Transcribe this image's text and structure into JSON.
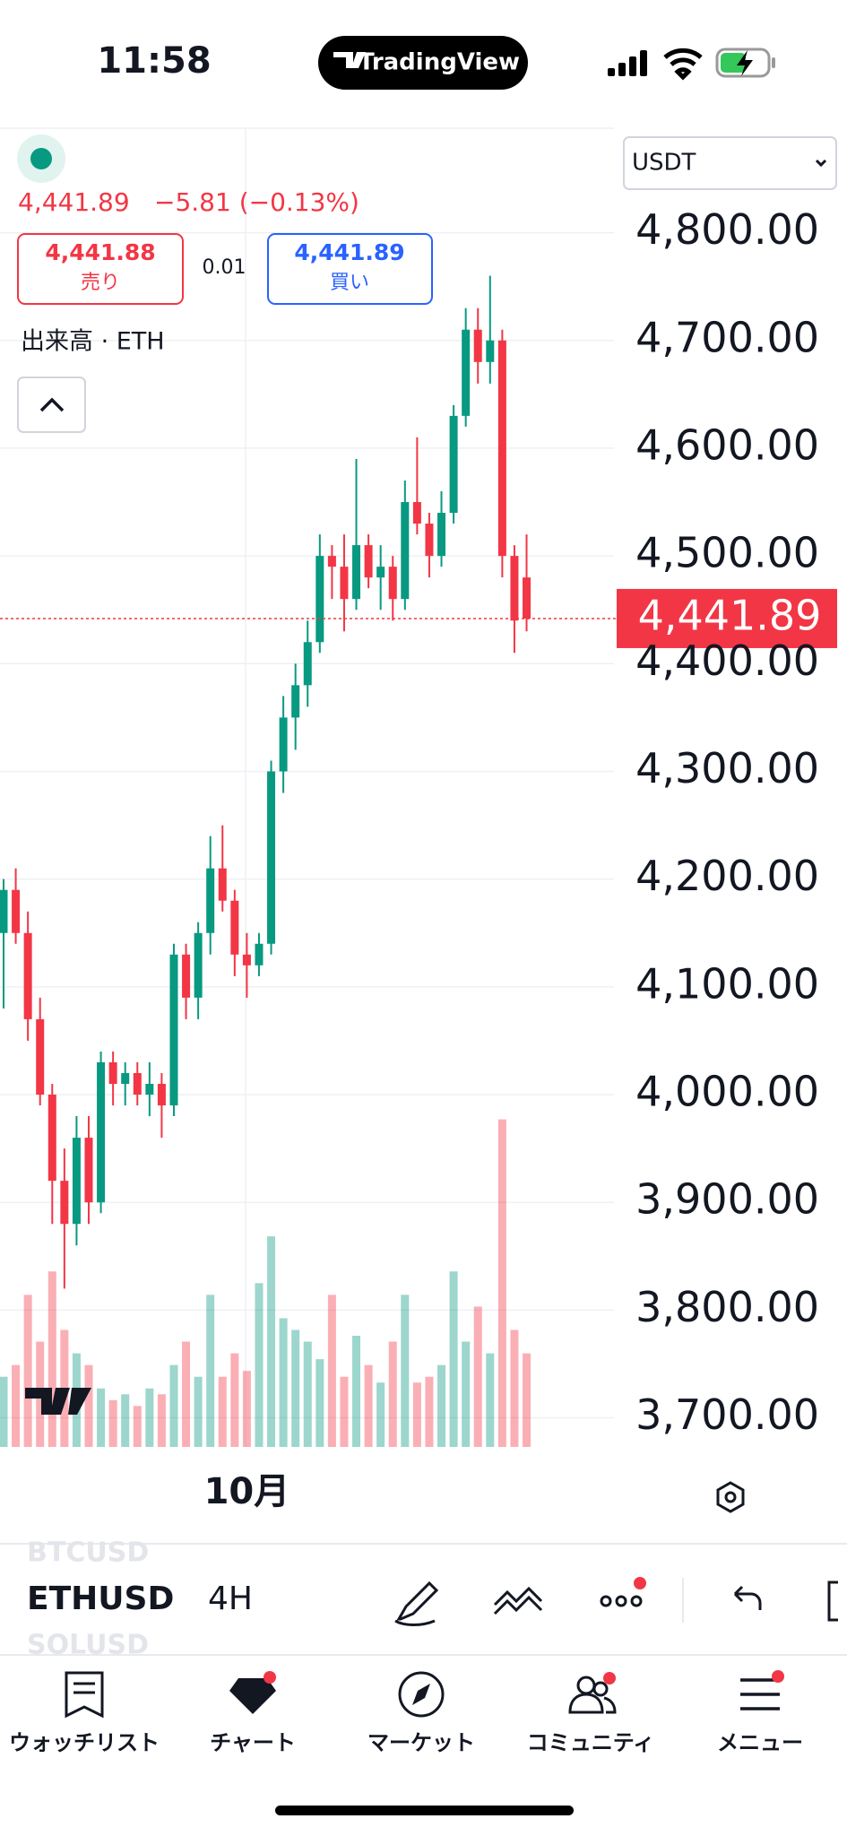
{
  "status_bar": {
    "time": "11:58",
    "app": "TradingView"
  },
  "header": {
    "price": "4,441.89",
    "change": "−5.81 (−0.13%)",
    "sell": {
      "price": "4,441.88",
      "label": "売り"
    },
    "spread": "0.01",
    "buy": {
      "price": "4,441.89",
      "label": "買い"
    },
    "volume_label": "出来高 · ETH",
    "currency": "USDT"
  },
  "chart_data": {
    "type": "candlestick",
    "categories": [
      null,
      null,
      null,
      null,
      null,
      null,
      null,
      null,
      null,
      null,
      null,
      null,
      null,
      null,
      null,
      null,
      null,
      null,
      null,
      null,
      "10月",
      null,
      null,
      null,
      null,
      null,
      null,
      null,
      null,
      null,
      null,
      null,
      null,
      null,
      null,
      null,
      null,
      null,
      null,
      null,
      null,
      null,
      null,
      null
    ],
    "open": [
      4150,
      4190,
      4150,
      4070,
      4000,
      3920,
      3880,
      3960,
      3900,
      4030,
      4010,
      4020,
      4000,
      4010,
      3990,
      4130,
      4090,
      4150,
      4210,
      4180,
      4130,
      4120,
      4140,
      4300,
      4350,
      4380,
      4420,
      4500,
      4490,
      4460,
      4510,
      4480,
      4490,
      4460,
      4550,
      4530,
      4500,
      4540,
      4630,
      4710,
      4680,
      4700,
      4500,
      4480
    ],
    "high": [
      4200,
      4210,
      4170,
      4090,
      4010,
      3950,
      3980,
      3980,
      4040,
      4040,
      4030,
      4030,
      4030,
      4020,
      4140,
      4140,
      4160,
      4240,
      4250,
      4190,
      4150,
      4150,
      4310,
      4370,
      4400,
      4440,
      4520,
      4510,
      4520,
      4590,
      4520,
      4510,
      4500,
      4570,
      4610,
      4540,
      4560,
      4640,
      4730,
      4730,
      4760,
      4710,
      4510,
      4520
    ],
    "low": [
      4080,
      4140,
      4050,
      3990,
      3880,
      3820,
      3860,
      3880,
      3890,
      3990,
      3990,
      3990,
      3980,
      3960,
      3980,
      4070,
      4070,
      4130,
      4170,
      4110,
      4090,
      4110,
      4130,
      4280,
      4320,
      4360,
      4410,
      4460,
      4430,
      4450,
      4470,
      4450,
      4440,
      4450,
      4520,
      4480,
      4490,
      4530,
      4620,
      4660,
      4660,
      4480,
      4410,
      4430
    ],
    "close": [
      4190,
      4150,
      4070,
      4000,
      3920,
      3880,
      3960,
      3900,
      4030,
      4010,
      4020,
      4000,
      4010,
      3990,
      4130,
      4090,
      4150,
      4210,
      4180,
      4130,
      4120,
      4140,
      4300,
      4350,
      4380,
      4420,
      4500,
      4490,
      4460,
      4510,
      4480,
      4490,
      4460,
      4550,
      4530,
      4500,
      4540,
      4630,
      4710,
      4680,
      4700,
      4500,
      4440,
      4441.89
    ],
    "volume": [
      60,
      70,
      130,
      90,
      150,
      100,
      80,
      70,
      50,
      40,
      45,
      35,
      50,
      45,
      70,
      90,
      60,
      130,
      60,
      80,
      65,
      140,
      180,
      110,
      100,
      90,
      75,
      130,
      60,
      95,
      70,
      55,
      90,
      130,
      55,
      60,
      70,
      150,
      90,
      120,
      80,
      280,
      100,
      80
    ],
    "up_color": "#089981",
    "down_color": "#f23645",
    "ylim": [
      3673,
      4897
    ],
    "yticks": [
      {
        "value": 3700,
        "label": "3,700.00"
      },
      {
        "value": 3800,
        "label": "3,800.00"
      },
      {
        "value": 3900,
        "label": "3,900.00"
      },
      {
        "value": 4000,
        "label": "4,000.00"
      },
      {
        "value": 4100,
        "label": "4,100.00"
      },
      {
        "value": 4200,
        "label": "4,200.00"
      },
      {
        "value": 4300,
        "label": "4,300.00"
      },
      {
        "value": 4400,
        "label": "4,400.00"
      },
      {
        "value": 4500,
        "label": "4,500.00"
      },
      {
        "value": 4600,
        "label": "4,600.00"
      },
      {
        "value": 4700,
        "label": "4,700.00"
      },
      {
        "value": 4800,
        "label": "4,800.00"
      }
    ],
    "last_price": {
      "value": 4441.89,
      "label": "4,441.89"
    },
    "grid": true
  },
  "toolbar": {
    "symbols": [
      "BTCUSD",
      "ETHUSD",
      "SOLUSD"
    ],
    "interval": "4H"
  },
  "nav": [
    "ウォッチリスト",
    "チャート",
    "マーケット",
    "コミュニティ",
    "メニュー"
  ]
}
